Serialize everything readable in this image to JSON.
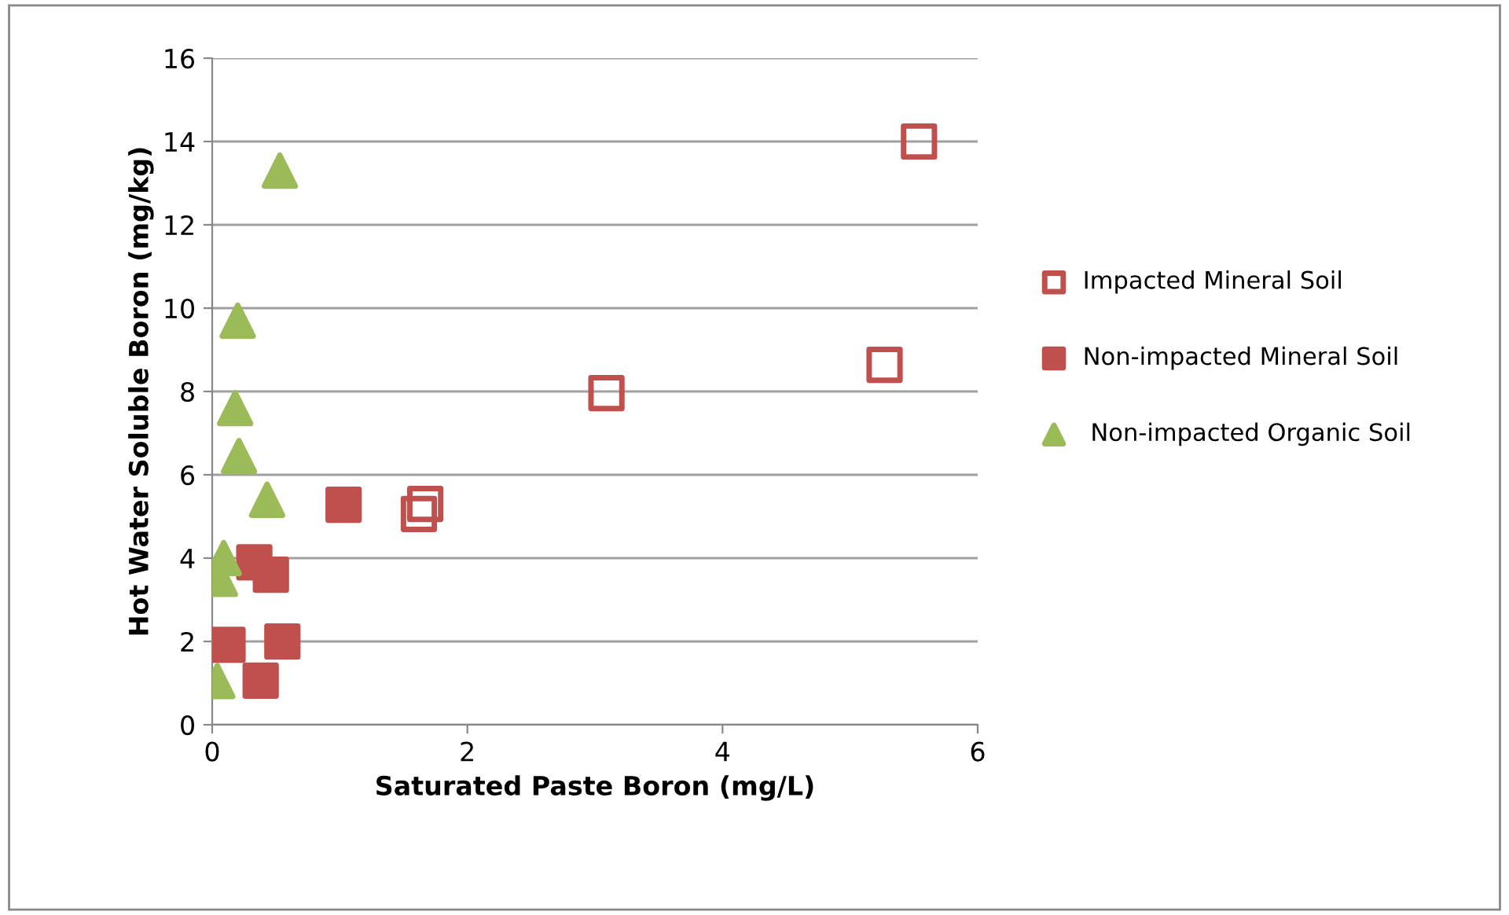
{
  "chart_data": {
    "type": "scatter",
    "xlabel": "Saturated Paste Boron (mg/L)",
    "ylabel": "Hot Water Soluble Boron (mg/kg)",
    "xlim": [
      0,
      6
    ],
    "xticks": [
      0,
      2,
      4,
      6
    ],
    "ylim": [
      0,
      16
    ],
    "yticks": [
      0,
      2,
      4,
      6,
      8,
      10,
      12,
      14,
      16
    ],
    "grid": "y",
    "legend": "right",
    "series": [
      {
        "name": "Impacted Mineral Soil",
        "color": "#c0504d",
        "marker": "square",
        "x": [
          1.62,
          1.67,
          3.09,
          5.27,
          5.54
        ],
        "values": [
          5.06,
          5.3,
          7.96,
          8.64,
          14.0
        ]
      },
      {
        "name": "Non-impacted Mineral Soil",
        "color": "#c0504d",
        "marker": "square",
        "x": [
          1.03,
          0.33,
          0.46,
          0.12,
          0.55,
          0.38
        ],
        "values": [
          5.28,
          3.9,
          3.6,
          1.92,
          2.0,
          1.06
        ]
      },
      {
        "name": " Non-impacted Organic Soil",
        "color": "#9bbb59",
        "marker": "triangle",
        "x": [
          0.53,
          0.2,
          0.18,
          0.21,
          0.43,
          0.09,
          0.06,
          0.04
        ],
        "values": [
          13.3,
          9.7,
          7.6,
          6.45,
          5.4,
          4.0,
          3.5,
          1.05
        ]
      }
    ]
  }
}
